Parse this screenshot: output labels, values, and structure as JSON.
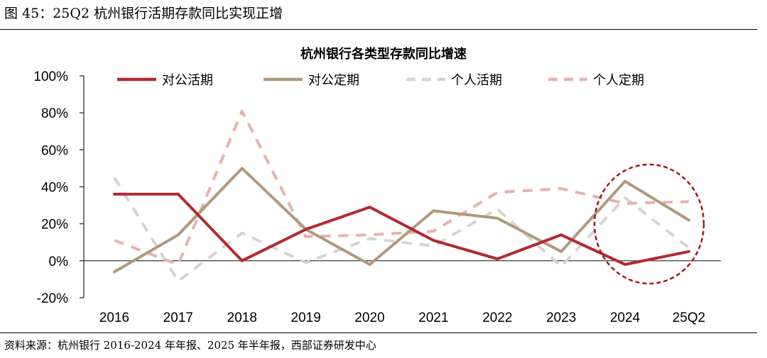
{
  "figure_title": "图 45：25Q2 杭州银行活期存款同比实现正增",
  "source_note": "资料来源：杭州银行 2016-2024 年年报、2025 年半年报，西部证券研发中心",
  "chart_data": {
    "type": "line",
    "title": "杭州银行各类型存款同比增速",
    "xlabel": "",
    "ylabel": "",
    "categories": [
      "2016",
      "2017",
      "2018",
      "2019",
      "2020",
      "2021",
      "2022",
      "2023",
      "2024",
      "25Q2"
    ],
    "ylim": [
      -20,
      100
    ],
    "yticks": [
      "100%",
      "80%",
      "60%",
      "40%",
      "20%",
      "0%",
      "-20%"
    ],
    "ytick_values": [
      100,
      80,
      60,
      40,
      20,
      0,
      -20
    ],
    "grid": false,
    "legend_position": "top",
    "series": [
      {
        "name": "对公活期",
        "color": "#b22a2e",
        "dashed": false,
        "values": [
          36,
          36,
          0,
          17,
          29,
          11,
          1,
          14,
          -2,
          5
        ]
      },
      {
        "name": "对公定期",
        "color": "#b09a7c",
        "dashed": false,
        "values": [
          -6,
          14,
          50,
          17,
          -2,
          27,
          23,
          5,
          43,
          22
        ]
      },
      {
        "name": "个人活期",
        "color": "#d4d4d4",
        "dashed": true,
        "values": [
          45,
          -11,
          15,
          -1,
          12,
          8,
          28,
          -3,
          34,
          7
        ]
      },
      {
        "name": "个人定期",
        "color": "#e6b3ad",
        "dashed": true,
        "values": [
          11,
          -2,
          81,
          13,
          14,
          16,
          37,
          39,
          31,
          32
        ]
      }
    ],
    "annotation": {
      "shape": "dashed-circle",
      "color": "#a4161c",
      "around": [
        "2024",
        "25Q2"
      ]
    }
  }
}
